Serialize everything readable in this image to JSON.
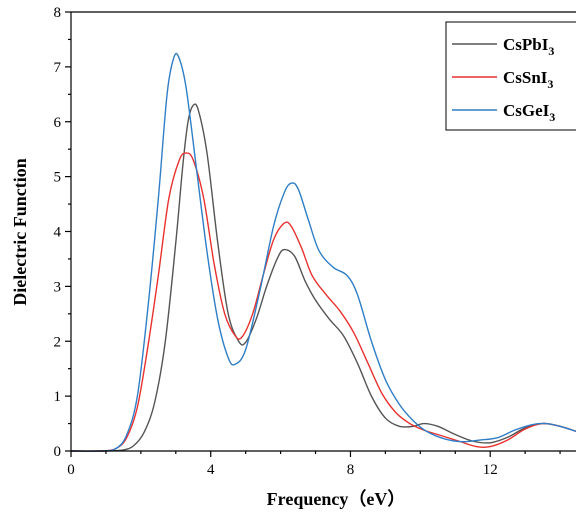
{
  "chart_data": {
    "type": "line",
    "title": "",
    "xlabel": "Frequency（eV）",
    "ylabel": "Dielectric Function",
    "xlim": [
      0,
      15
    ],
    "ylim": [
      0,
      8
    ],
    "x_ticks": [
      0,
      4,
      8,
      12
    ],
    "y_ticks": [
      0,
      1,
      2,
      3,
      4,
      5,
      6,
      7,
      8
    ],
    "grid": false,
    "legend_position": "top-right",
    "series": [
      {
        "name": "CsPbI3",
        "name_main": "CsPbI",
        "name_sub": "3",
        "color": "#555555",
        "points": [
          [
            0,
            0
          ],
          [
            1.0,
            0
          ],
          [
            1.5,
            0.02
          ],
          [
            1.8,
            0.1
          ],
          [
            2.1,
            0.35
          ],
          [
            2.4,
            0.9
          ],
          [
            2.7,
            2.0
          ],
          [
            3.0,
            3.8
          ],
          [
            3.2,
            5.2
          ],
          [
            3.35,
            6.0
          ],
          [
            3.5,
            6.3
          ],
          [
            3.65,
            6.2
          ],
          [
            3.9,
            5.4
          ],
          [
            4.2,
            3.8
          ],
          [
            4.5,
            2.5
          ],
          [
            4.8,
            2.0
          ],
          [
            5.0,
            1.98
          ],
          [
            5.3,
            2.4
          ],
          [
            5.6,
            3.0
          ],
          [
            5.9,
            3.5
          ],
          [
            6.1,
            3.67
          ],
          [
            6.4,
            3.55
          ],
          [
            6.7,
            3.1
          ],
          [
            7.0,
            2.75
          ],
          [
            7.4,
            2.4
          ],
          [
            7.8,
            2.1
          ],
          [
            8.2,
            1.6
          ],
          [
            8.6,
            1.0
          ],
          [
            9.0,
            0.6
          ],
          [
            9.4,
            0.45
          ],
          [
            9.8,
            0.45
          ],
          [
            10.1,
            0.5
          ],
          [
            10.5,
            0.45
          ],
          [
            11.0,
            0.3
          ],
          [
            11.5,
            0.18
          ],
          [
            12.0,
            0.15
          ],
          [
            12.5,
            0.25
          ],
          [
            13.0,
            0.42
          ],
          [
            13.5,
            0.5
          ],
          [
            14.0,
            0.45
          ],
          [
            14.5,
            0.35
          ],
          [
            15.0,
            0.25
          ]
        ]
      },
      {
        "name": "CsSnI3",
        "name_main": "CsSnI",
        "name_sub": "3",
        "color": "#e8312f",
        "points": [
          [
            0,
            0
          ],
          [
            0.9,
            0
          ],
          [
            1.3,
            0.05
          ],
          [
            1.6,
            0.25
          ],
          [
            1.9,
            0.8
          ],
          [
            2.2,
            1.9
          ],
          [
            2.5,
            3.2
          ],
          [
            2.8,
            4.6
          ],
          [
            3.1,
            5.3
          ],
          [
            3.3,
            5.43
          ],
          [
            3.5,
            5.3
          ],
          [
            3.8,
            4.6
          ],
          [
            4.1,
            3.4
          ],
          [
            4.4,
            2.5
          ],
          [
            4.7,
            2.1
          ],
          [
            4.9,
            2.08
          ],
          [
            5.2,
            2.5
          ],
          [
            5.5,
            3.2
          ],
          [
            5.8,
            3.85
          ],
          [
            6.1,
            4.15
          ],
          [
            6.3,
            4.1
          ],
          [
            6.6,
            3.7
          ],
          [
            6.9,
            3.2
          ],
          [
            7.3,
            2.85
          ],
          [
            7.7,
            2.55
          ],
          [
            8.1,
            2.15
          ],
          [
            8.5,
            1.6
          ],
          [
            8.9,
            1.05
          ],
          [
            9.3,
            0.7
          ],
          [
            9.7,
            0.5
          ],
          [
            10.1,
            0.38
          ],
          [
            10.6,
            0.28
          ],
          [
            11.1,
            0.18
          ],
          [
            11.6,
            0.08
          ],
          [
            12.0,
            0.08
          ],
          [
            12.5,
            0.2
          ],
          [
            13.0,
            0.4
          ],
          [
            13.5,
            0.5
          ],
          [
            14.0,
            0.45
          ],
          [
            14.5,
            0.35
          ],
          [
            15.0,
            0.25
          ]
        ]
      },
      {
        "name": "CsGeI3",
        "name_main": "CsGeI",
        "name_sub": "3",
        "color": "#2f7ec6",
        "points": [
          [
            0,
            0
          ],
          [
            0.9,
            0
          ],
          [
            1.3,
            0.05
          ],
          [
            1.6,
            0.3
          ],
          [
            1.9,
            1.0
          ],
          [
            2.2,
            2.6
          ],
          [
            2.5,
            4.6
          ],
          [
            2.75,
            6.5
          ],
          [
            2.95,
            7.18
          ],
          [
            3.1,
            7.15
          ],
          [
            3.3,
            6.6
          ],
          [
            3.6,
            5.1
          ],
          [
            3.9,
            3.6
          ],
          [
            4.2,
            2.4
          ],
          [
            4.5,
            1.7
          ],
          [
            4.7,
            1.58
          ],
          [
            5.0,
            1.85
          ],
          [
            5.4,
            2.9
          ],
          [
            5.8,
            4.1
          ],
          [
            6.1,
            4.7
          ],
          [
            6.3,
            4.88
          ],
          [
            6.5,
            4.78
          ],
          [
            6.8,
            4.2
          ],
          [
            7.1,
            3.65
          ],
          [
            7.5,
            3.35
          ],
          [
            7.9,
            3.2
          ],
          [
            8.2,
            2.85
          ],
          [
            8.6,
            2.0
          ],
          [
            9.0,
            1.3
          ],
          [
            9.4,
            0.85
          ],
          [
            9.8,
            0.55
          ],
          [
            10.2,
            0.35
          ],
          [
            10.7,
            0.22
          ],
          [
            11.2,
            0.17
          ],
          [
            11.7,
            0.2
          ],
          [
            12.2,
            0.24
          ],
          [
            12.7,
            0.38
          ],
          [
            13.2,
            0.48
          ],
          [
            13.6,
            0.5
          ],
          [
            14.0,
            0.45
          ],
          [
            14.5,
            0.35
          ],
          [
            15.0,
            0.25
          ]
        ]
      }
    ]
  }
}
